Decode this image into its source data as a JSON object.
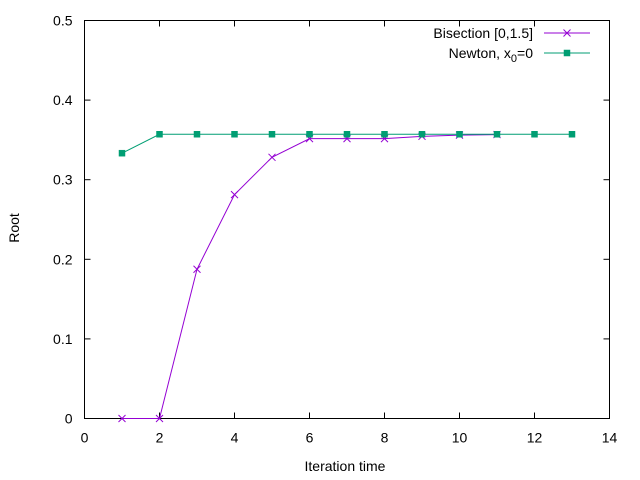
{
  "chart_data": {
    "type": "line",
    "title": "",
    "xlabel": "Iteration time",
    "ylabel": "Root",
    "xlim": [
      0,
      14
    ],
    "ylim": [
      0,
      0.5
    ],
    "x_ticks": [
      0,
      2,
      4,
      6,
      8,
      10,
      12,
      14
    ],
    "x_tick_labels": [
      "0",
      "2",
      "4",
      "6",
      "8",
      "10",
      "12",
      "14"
    ],
    "y_ticks": [
      0,
      0.1,
      0.2,
      0.3,
      0.4,
      0.5
    ],
    "y_tick_labels": [
      "0",
      "0.1",
      "0.2",
      "0.3",
      "0.4",
      "0.5"
    ],
    "grid": false,
    "legend_position": "top-right",
    "series": [
      {
        "name": "Bisection [0,1.5]",
        "color": "#9400d3",
        "marker": "x",
        "x": [
          1,
          2,
          3,
          4,
          5,
          6,
          7,
          8,
          9,
          10,
          11
        ],
        "y": [
          0,
          0,
          0.1875,
          0.28125,
          0.328125,
          0.3515625,
          0.3515625,
          0.3515625,
          0.3544922,
          0.355957,
          0.3566895
        ]
      },
      {
        "name": "Newton, x",
        "name_subscript": "0",
        "name_suffix": "=0",
        "color": "#009e73",
        "marker": "filled-square",
        "x": [
          1,
          2,
          3,
          4,
          5,
          6,
          7,
          8,
          9,
          10,
          11,
          12,
          13
        ],
        "y": [
          0.3333,
          0.3571,
          0.3571,
          0.3571,
          0.3571,
          0.3571,
          0.3571,
          0.3571,
          0.3571,
          0.3571,
          0.3571,
          0.3571,
          0.3571
        ]
      }
    ]
  }
}
